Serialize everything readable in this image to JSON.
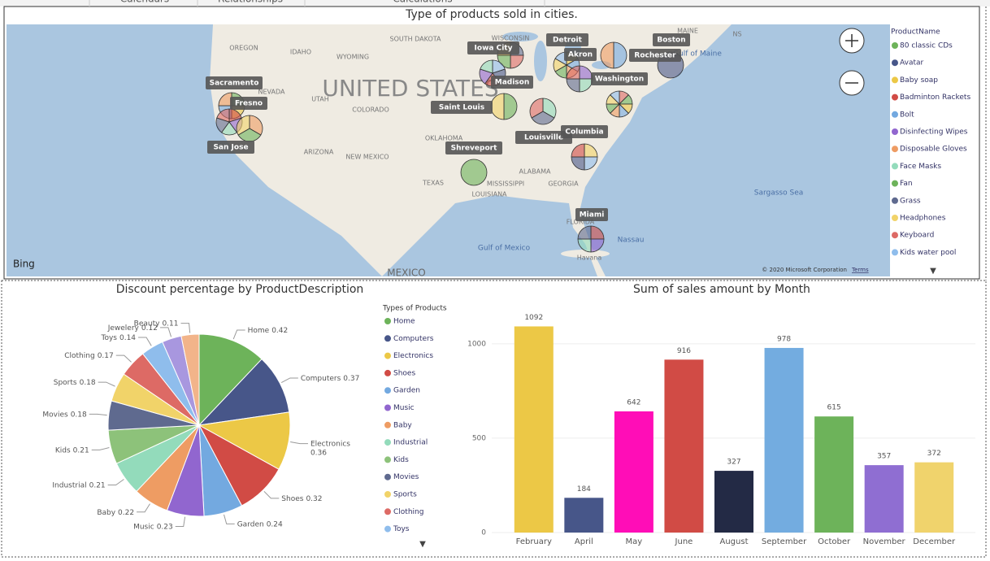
{
  "tabs": [
    "Calendars",
    "Relationships",
    "Calculations"
  ],
  "map": {
    "title": "Type of products sold in cities.",
    "cities": [
      "Sacramento",
      "Fresno",
      "San Jose",
      "Iowa City",
      "Detroit",
      "Akron",
      "Madison",
      "Saint Louis",
      "Washington",
      "Boston",
      "Rochester",
      "Louisville",
      "Columbia",
      "Shreveport",
      "Miami"
    ],
    "places": [
      "OREGON",
      "IDAHO",
      "WYOMING",
      "SOUTH DAKOTA",
      "WISCONSIN",
      "NEVADA",
      "UTAH",
      "COLORADO",
      "UNITED STATES",
      "ARIZONA",
      "NEW MEXICO",
      "OKLAHOMA",
      "TEXAS",
      "ALABAMA",
      "MISSISSIPPI",
      "GEORGIA",
      "LOUISIANA",
      "FLORIDA",
      "Gulf of Mexico",
      "Sargasso Sea",
      "Gulf of Maine",
      "MAINE",
      "NS",
      "Nassau",
      "Havana",
      "MEXICO"
    ],
    "attribution": "© 2020 Microsoft Corporation",
    "terms": "Terms",
    "provider": "Bing",
    "legend_title": "ProductName",
    "legend": [
      {
        "name": "80 classic CDs",
        "color": "#6db35a"
      },
      {
        "name": "Avatar",
        "color": "#475689"
      },
      {
        "name": "Baby soap",
        "color": "#ecc846"
      },
      {
        "name": "Badminton Rackets",
        "color": "#d14b45"
      },
      {
        "name": "Bolt",
        "color": "#73a9e0"
      },
      {
        "name": "Disinfecting Wipes",
        "color": "#9166cf"
      },
      {
        "name": "Disposable Gloves",
        "color": "#ee9c63"
      },
      {
        "name": "Face Masks",
        "color": "#93dbbb"
      },
      {
        "name": "Fan",
        "color": "#6db35a"
      },
      {
        "name": "Grass",
        "color": "#5f6a8f"
      },
      {
        "name": "Headphones",
        "color": "#f1d369"
      },
      {
        "name": "Keyboard",
        "color": "#dd6a65"
      },
      {
        "name": "Kids water pool",
        "color": "#8fbdec"
      }
    ]
  },
  "chart_data": [
    {
      "type": "pie",
      "title": "Discount percentage by ProductDescription",
      "legend_title": "Types of Products",
      "categories": [
        "Home",
        "Computers",
        "Electronics",
        "Shoes",
        "Garden",
        "Music",
        "Baby",
        "Industrial",
        "Kids",
        "Movies",
        "Sports",
        "Clothing",
        "Toys",
        "Jewelery",
        "Beauty"
      ],
      "values": [
        0.42,
        0.37,
        0.36,
        0.32,
        0.24,
        0.23,
        0.22,
        0.21,
        0.21,
        0.18,
        0.18,
        0.17,
        0.14,
        0.12,
        0.11
      ],
      "colors": [
        "#6db35a",
        "#475689",
        "#ecc846",
        "#d14b45",
        "#73a9e0",
        "#9166cf",
        "#ee9c63",
        "#93dbbb",
        "#8dc27a",
        "#5f6a8f",
        "#f1d369",
        "#dd6a65",
        "#8fbdec",
        "#a897df",
        "#f2b48a"
      ]
    },
    {
      "type": "bar",
      "title": "Sum of sales amount by Month",
      "categories": [
        "February",
        "April",
        "May",
        "June",
        "August",
        "September",
        "October",
        "November",
        "December"
      ],
      "values": [
        1092,
        184,
        642,
        916,
        327,
        978,
        615,
        357,
        372
      ],
      "colors": [
        "#ecc846",
        "#475689",
        "#ff0db7",
        "#d14b45",
        "#232a45",
        "#73ace0",
        "#6db35a",
        "#8f6ed2",
        "#f0d36c"
      ],
      "ylim": [
        0,
        1150
      ],
      "yticks": [
        0,
        500,
        1000
      ],
      "grid": true
    }
  ]
}
